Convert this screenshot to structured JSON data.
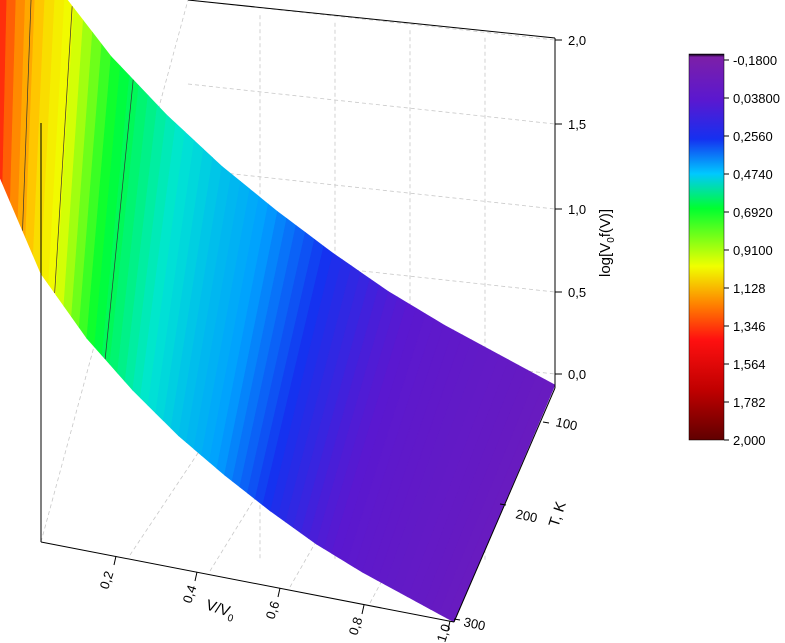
{
  "chart_data": {
    "type": "surface3d",
    "x_axis": {
      "label": "V/V",
      "label_subscript": "0",
      "range": [
        0,
        1.0
      ],
      "ticks": [
        "0,2",
        "0,4",
        "0,6",
        "0,8",
        "1,0"
      ]
    },
    "y_axis": {
      "label": "T, K",
      "range": [
        50,
        300
      ],
      "ticks": [
        "100",
        "200",
        "300"
      ]
    },
    "z_axis": {
      "label_pre": "log[V",
      "label_sub": "0",
      "label_post": "f(V)]",
      "range": [
        -0.18,
        2.0
      ],
      "ticks": [
        "0,0",
        "0,5",
        "1,0",
        "1,5",
        "2,0"
      ]
    },
    "surface_profile": {
      "x": [
        0.0,
        0.1,
        0.2,
        0.3,
        0.4,
        0.5,
        0.6,
        0.7,
        0.8,
        0.9,
        1.0
      ],
      "z": [
        1.55,
        1.0,
        0.72,
        0.52,
        0.36,
        0.24,
        0.14,
        0.06,
        0.01,
        -0.02,
        -0.05
      ]
    },
    "colorbar": {
      "labels": [
        "-0,1800",
        "0,03800",
        "0,2560",
        "0,4740",
        "0,6920",
        "0,9100",
        "1,128",
        "1,346",
        "1,564",
        "1,782",
        "2,000"
      ],
      "colors": [
        "#000000",
        "#7c1fa8",
        "#3a10e0",
        "#0a5cff",
        "#00d4ff",
        "#00ff28",
        "#f4ff00",
        "#ff7a00",
        "#ff1010",
        "#b00000",
        "#6a0000"
      ]
    }
  }
}
